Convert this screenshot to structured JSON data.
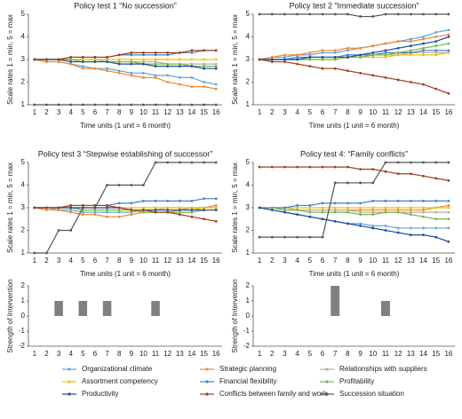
{
  "legend": {
    "entries": [
      {
        "name": "Organizational climate",
        "color": "#5fa8d8"
      },
      {
        "name": "Strategic planning",
        "color": "#f08a30"
      },
      {
        "name": "Relationships with suppliers",
        "color": "#b0b0b0"
      },
      {
        "name": "Assortment competency",
        "color": "#f2c200"
      },
      {
        "name": "Financial flexibility",
        "color": "#4a7fc8"
      },
      {
        "name": "Profitability",
        "color": "#7ab648"
      },
      {
        "name": "Productivity",
        "color": "#1f4e9c"
      },
      {
        "name": "Conflicts between family and work",
        "color": "#a0401a"
      },
      {
        "name": "Succession situation",
        "color": "#555555"
      }
    ]
  },
  "chart_data": [
    {
      "type": "line",
      "title": "Policy test 1 “No succession”",
      "xlabel": "Time units (1 unit = 6 month)",
      "ylabel": "Scale rates 1 = min, 5 = max",
      "categories": [
        "1",
        "2",
        "3",
        "4",
        "5",
        "6",
        "7",
        "8",
        "9",
        "10",
        "11",
        "12",
        "13",
        "14",
        "15",
        "16"
      ],
      "ylim": [
        1,
        5
      ],
      "yticks": [
        1,
        2,
        3,
        4,
        5
      ],
      "series": [
        {
          "values": [
            3,
            2.9,
            2.9,
            2.8,
            2.7,
            2.6,
            2.6,
            2.5,
            2.4,
            2.4,
            2.3,
            2.3,
            2.2,
            2.2,
            2.0,
            1.9
          ]
        },
        {
          "values": [
            3,
            2.9,
            2.9,
            2.8,
            2.6,
            2.6,
            2.5,
            2.4,
            2.3,
            2.2,
            2.2,
            2.0,
            1.9,
            1.8,
            1.8,
            1.7
          ]
        },
        {
          "values": [
            3,
            3,
            3,
            3,
            3,
            3,
            2.9,
            2.9,
            2.9,
            2.9,
            2.9,
            2.8,
            2.8,
            2.8,
            2.8,
            2.8
          ]
        },
        {
          "values": [
            3,
            3,
            3,
            3,
            3,
            3,
            3,
            3,
            3,
            3,
            3,
            3,
            3,
            3,
            3,
            3
          ]
        },
        {
          "values": [
            3,
            3,
            3,
            3.1,
            3.1,
            3.1,
            3.1,
            3.2,
            3.2,
            3.2,
            3.2,
            3.2,
            3.3,
            3.3,
            3.4,
            3.4
          ]
        },
        {
          "values": [
            3,
            3,
            3,
            3,
            2.9,
            2.9,
            2.9,
            2.9,
            2.9,
            2.8,
            2.8,
            2.8,
            2.8,
            2.7,
            2.7,
            2.7
          ]
        },
        {
          "values": [
            3,
            3,
            3,
            2.9,
            2.9,
            2.9,
            2.9,
            2.8,
            2.8,
            2.8,
            2.7,
            2.7,
            2.7,
            2.7,
            2.6,
            2.6
          ]
        },
        {
          "values": [
            3,
            3,
            3,
            3.1,
            3.1,
            3.1,
            3.1,
            3.2,
            3.3,
            3.3,
            3.3,
            3.3,
            3.3,
            3.4,
            3.4,
            3.4
          ]
        },
        {
          "values": [
            1,
            1,
            1,
            1,
            1,
            1,
            1,
            1,
            1,
            1,
            1,
            1,
            1,
            1,
            1,
            1
          ]
        }
      ]
    },
    {
      "type": "line",
      "title": "Policy test 2 “Immediate succession”",
      "xlabel": "Time units (1 unit = 6 month)",
      "ylabel": "Scale rates 1 = min, 5 = max",
      "categories": [
        "1",
        "2",
        "3",
        "4",
        "5",
        "6",
        "7",
        "8",
        "9",
        "10",
        "11",
        "12",
        "13",
        "14",
        "15",
        "16"
      ],
      "ylim": [
        1,
        5
      ],
      "yticks": [
        1,
        2,
        3,
        4,
        5
      ],
      "series": [
        {
          "values": [
            3,
            3.1,
            3.1,
            3.2,
            3.2,
            3.3,
            3.3,
            3.4,
            3.5,
            3.6,
            3.7,
            3.8,
            3.9,
            4.0,
            4.2,
            4.3
          ]
        },
        {
          "values": [
            3,
            3.1,
            3.2,
            3.2,
            3.3,
            3.4,
            3.4,
            3.5,
            3.5,
            3.6,
            3.7,
            3.8,
            3.8,
            3.9,
            4.0,
            4.1
          ]
        },
        {
          "values": [
            3,
            3,
            3,
            3,
            3.1,
            3.1,
            3.1,
            3.1,
            3.1,
            3.2,
            3.2,
            3.2,
            3.3,
            3.3,
            3.3,
            3.3
          ]
        },
        {
          "values": [
            3,
            3,
            3,
            3,
            3,
            3,
            3,
            3.1,
            3.1,
            3.1,
            3.1,
            3.2,
            3.2,
            3.2,
            3.2,
            3.3
          ]
        },
        {
          "values": [
            3,
            3,
            3,
            3.1,
            3.1,
            3.1,
            3.1,
            3.2,
            3.2,
            3.2,
            3.3,
            3.3,
            3.3,
            3.4,
            3.4,
            3.4
          ]
        },
        {
          "values": [
            3,
            3,
            3,
            3,
            3,
            3,
            3,
            3.1,
            3.1,
            3.2,
            3.2,
            3.3,
            3.4,
            3.5,
            3.6,
            3.7
          ]
        },
        {
          "values": [
            3,
            3,
            3,
            3,
            3.1,
            3.1,
            3.1,
            3.1,
            3.2,
            3.3,
            3.4,
            3.5,
            3.6,
            3.7,
            3.8,
            4.0
          ]
        },
        {
          "values": [
            3,
            2.9,
            2.9,
            2.8,
            2.7,
            2.6,
            2.6,
            2.5,
            2.4,
            2.3,
            2.2,
            2.1,
            2.0,
            1.9,
            1.7,
            1.5
          ]
        },
        {
          "values": [
            5,
            5,
            5,
            5,
            5,
            5,
            5,
            5,
            4.9,
            4.9,
            5,
            5,
            5,
            5,
            5,
            5
          ]
        }
      ]
    },
    {
      "type": "line",
      "title": "Policy test 3 “Stepwise establishing of successor”",
      "xlabel": "Time units (1 unit = 6 month)",
      "ylabel": "Scale rates 1 = min, 5 = max",
      "categories": [
        "1",
        "2",
        "3",
        "4",
        "5",
        "6",
        "7",
        "8",
        "9",
        "10",
        "11",
        "12",
        "13",
        "14",
        "15",
        "16"
      ],
      "ylim": [
        1,
        5
      ],
      "yticks": [
        1,
        2,
        3,
        4,
        5
      ],
      "series": [
        {
          "values": [
            3,
            3,
            2.9,
            2.9,
            2.8,
            2.8,
            2.8,
            2.8,
            2.8,
            2.9,
            2.9,
            2.9,
            2.9,
            3,
            3,
            3.1
          ]
        },
        {
          "values": [
            3,
            2.9,
            2.9,
            2.8,
            2.7,
            2.7,
            2.6,
            2.6,
            2.7,
            2.8,
            2.8,
            2.8,
            2.9,
            2.9,
            3.0,
            3.1
          ]
        },
        {
          "values": [
            3,
            3,
            3,
            3,
            2.9,
            2.9,
            2.9,
            2.9,
            2.9,
            2.9,
            2.9,
            3.0,
            3.0,
            3.0,
            3.0,
            3.0
          ]
        },
        {
          "values": [
            3,
            3,
            3,
            3,
            3,
            3,
            3,
            3,
            3,
            3,
            3,
            3,
            3,
            3,
            3,
            3
          ]
        },
        {
          "values": [
            3,
            3,
            3,
            3.1,
            3.1,
            3.1,
            3.1,
            3.2,
            3.2,
            3.3,
            3.3,
            3.3,
            3.3,
            3.3,
            3.4,
            3.4
          ]
        },
        {
          "values": [
            3,
            3,
            3,
            3,
            2.9,
            2.9,
            2.9,
            2.9,
            2.9,
            2.8,
            2.8,
            2.8,
            2.8,
            2.8,
            2.9,
            2.9
          ]
        },
        {
          "values": [
            3,
            3,
            3,
            3,
            3,
            3,
            3,
            3,
            2.9,
            2.9,
            2.9,
            2.9,
            2.9,
            2.9,
            2.9,
            2.9
          ]
        },
        {
          "values": [
            3,
            3,
            3,
            3.1,
            3.1,
            3.1,
            3.1,
            3,
            2.9,
            2.9,
            2.8,
            2.8,
            2.7,
            2.6,
            2.5,
            2.4
          ]
        },
        {
          "values": [
            1,
            1,
            2,
            2,
            3,
            3,
            4,
            4,
            4,
            4,
            5,
            5,
            5,
            5,
            5,
            5
          ]
        }
      ]
    },
    {
      "type": "line",
      "title": "Policy test 4: “Family conflicts”",
      "xlabel": "Time units (1 unit = 6 month)",
      "ylabel": "Scale rates 1 = min, 5 = max",
      "categories": [
        "1",
        "2",
        "3",
        "4",
        "5",
        "6",
        "7",
        "8",
        "9",
        "10",
        "11",
        "12",
        "13",
        "14",
        "15",
        "16"
      ],
      "ylim": [
        1,
        5
      ],
      "yticks": [
        1,
        2,
        3,
        4,
        5
      ],
      "series": [
        {
          "values": [
            3,
            2.9,
            2.8,
            2.7,
            2.6,
            2.5,
            2.4,
            2.3,
            2.3,
            2.2,
            2.2,
            2.1,
            2.1,
            2.1,
            2.1,
            2.1
          ]
        },
        {
          "values": [
            3,
            3,
            2.9,
            2.9,
            2.9,
            2.9,
            2.9,
            2.9,
            2.9,
            2.9,
            2.9,
            2.9,
            2.9,
            2.9,
            3.0,
            3.1
          ]
        },
        {
          "values": [
            3,
            3,
            3,
            2.9,
            2.9,
            2.9,
            2.9,
            2.9,
            2.8,
            2.8,
            2.8,
            2.8,
            2.8,
            2.8,
            2.8,
            2.8
          ]
        },
        {
          "values": [
            3,
            3,
            3,
            3,
            3,
            3,
            3,
            3,
            3,
            3,
            3,
            3,
            3,
            3,
            3,
            3
          ]
        },
        {
          "values": [
            3,
            3,
            3,
            3.1,
            3.1,
            3.2,
            3.2,
            3.2,
            3.2,
            3.3,
            3.3,
            3.3,
            3.3,
            3.3,
            3.3,
            3.3
          ]
        },
        {
          "values": [
            3,
            3,
            2.9,
            2.9,
            2.8,
            2.8,
            2.8,
            2.8,
            2.7,
            2.7,
            2.8,
            2.8,
            2.7,
            2.6,
            2.5,
            2.5
          ]
        },
        {
          "values": [
            3,
            2.9,
            2.8,
            2.7,
            2.6,
            2.5,
            2.4,
            2.3,
            2.2,
            2.1,
            2.0,
            1.9,
            1.8,
            1.8,
            1.7,
            1.5
          ]
        },
        {
          "values": [
            4.8,
            4.8,
            4.8,
            4.8,
            4.8,
            4.8,
            4.8,
            4.8,
            4.7,
            4.7,
            4.6,
            4.5,
            4.5,
            4.4,
            4.3,
            4.2
          ]
        },
        {
          "values": [
            1.7,
            1.7,
            1.7,
            1.7,
            1.7,
            1.7,
            4.1,
            4.1,
            4.1,
            4.1,
            5,
            5,
            5,
            5,
            5,
            5
          ]
        }
      ]
    },
    {
      "type": "bar",
      "ylabel": "Strength of Intervention",
      "color": "#808080",
      "categories": [
        "1",
        "2",
        "3",
        "4",
        "5",
        "6",
        "7",
        "8",
        "9",
        "10",
        "11",
        "12",
        "13",
        "14",
        "15",
        "16"
      ],
      "ylim": [
        -2,
        2
      ],
      "yticks": [
        -2,
        -1,
        0,
        1,
        2
      ],
      "values": [
        0,
        0,
        1,
        0,
        1,
        0,
        1,
        0,
        0,
        0,
        1,
        0,
        0,
        0,
        0,
        0
      ]
    },
    {
      "type": "bar",
      "ylabel": "Strength of Intervention",
      "color": "#808080",
      "categories": [
        "1",
        "2",
        "3",
        "4",
        "5",
        "6",
        "7",
        "8",
        "9",
        "10",
        "11",
        "12",
        "13",
        "14",
        "15",
        "16"
      ],
      "ylim": [
        -2,
        2
      ],
      "yticks": [
        -2,
        -1,
        0,
        1,
        2
      ],
      "values": [
        0,
        0,
        0,
        0,
        0,
        0,
        2,
        0,
        0,
        0,
        1,
        0,
        0,
        0,
        0,
        0
      ]
    }
  ]
}
